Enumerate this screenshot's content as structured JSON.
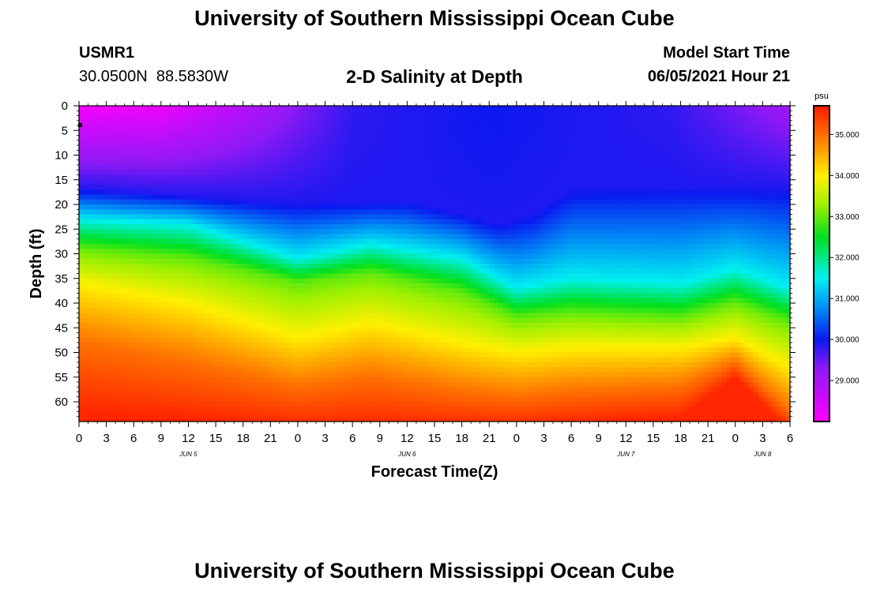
{
  "title": "University of Southern Mississippi Ocean Cube",
  "footer_title": "University of Southern Mississippi Ocean Cube",
  "station": {
    "id": "USMR1",
    "lat": "30.0500N",
    "lon": "88.5830W"
  },
  "model": {
    "label": "Model Start Time",
    "time": "06/05/2021 Hour 21"
  },
  "chart_data": {
    "type": "heatmap",
    "title": "2-D Salinity at Depth",
    "xlabel": "Forecast Time(Z)",
    "ylabel": "Depth (ft)",
    "x_hours_range": [
      0,
      78
    ],
    "ylim": [
      0,
      64
    ],
    "x_tick_labels": [
      "0",
      "3",
      "6",
      "9",
      "12",
      "15",
      "18",
      "21",
      "0",
      "3",
      "6",
      "9",
      "12",
      "15",
      "18",
      "21",
      "0",
      "3",
      "6",
      "9",
      "12",
      "15",
      "18",
      "21",
      "0",
      "3",
      "6"
    ],
    "y_ticks": [
      0,
      5,
      10,
      15,
      20,
      25,
      30,
      35,
      40,
      45,
      50,
      55,
      60
    ],
    "day_labels": [
      {
        "hour": 12,
        "label": "JUN 5"
      },
      {
        "hour": 36,
        "label": "JUN 6"
      },
      {
        "hour": 60,
        "label": "JUN 7"
      },
      {
        "hour": 75,
        "label": "JUN 8"
      }
    ],
    "colorbar": {
      "unit": "psu",
      "range": [
        28.0,
        35.7
      ],
      "tick_values": [
        29.0,
        30.0,
        31.0,
        32.0,
        33.0,
        34.0,
        35.0
      ],
      "tick_labels": [
        "29.000",
        "30.000",
        "31.000",
        "32.000",
        "33.000",
        "34.000",
        "35.000"
      ],
      "stops": [
        {
          "v": 28.0,
          "c": "#ff00ff"
        },
        {
          "v": 29.3,
          "c": "#8f19f5"
        },
        {
          "v": 30.0,
          "c": "#0a19f0"
        },
        {
          "v": 30.8,
          "c": "#0090f5"
        },
        {
          "v": 31.5,
          "c": "#00f0f0"
        },
        {
          "v": 32.5,
          "c": "#00e020"
        },
        {
          "v": 33.3,
          "c": "#a0f000"
        },
        {
          "v": 34.0,
          "c": "#fff000"
        },
        {
          "v": 34.7,
          "c": "#ff9400"
        },
        {
          "v": 35.7,
          "c": "#ff1a00"
        }
      ]
    },
    "surface_salinity": [
      {
        "hour": 0,
        "value": 28.1
      },
      {
        "hour": 9,
        "value": 28.2
      },
      {
        "hour": 20,
        "value": 29.0
      },
      {
        "hour": 30,
        "value": 29.8
      },
      {
        "hour": 45,
        "value": 30.0
      },
      {
        "hour": 65,
        "value": 29.8
      },
      {
        "hour": 78,
        "value": 29.1
      }
    ],
    "isohalines": [
      {
        "value": 29.9,
        "points": [
          [
            0,
            17
          ],
          [
            12,
            18.5
          ],
          [
            24,
            20
          ],
          [
            36,
            19.5
          ],
          [
            42,
            22
          ],
          [
            46,
            24
          ],
          [
            50,
            22
          ],
          [
            54,
            17
          ],
          [
            66,
            16.5
          ],
          [
            78,
            17
          ]
        ]
      },
      {
        "value": 31.5,
        "points": [
          [
            0,
            23
          ],
          [
            12,
            24
          ],
          [
            24,
            31
          ],
          [
            32,
            28
          ],
          [
            42,
            31
          ],
          [
            48,
            37
          ],
          [
            54,
            35
          ],
          [
            66,
            36
          ],
          [
            72,
            33
          ],
          [
            78,
            37
          ]
        ]
      },
      {
        "value": 33.0,
        "points": [
          [
            0,
            29
          ],
          [
            12,
            31
          ],
          [
            24,
            36
          ],
          [
            32,
            34
          ],
          [
            42,
            38
          ],
          [
            48,
            43
          ],
          [
            54,
            42
          ],
          [
            66,
            43
          ],
          [
            72,
            40
          ],
          [
            78,
            44
          ]
        ]
      },
      {
        "value": 34.0,
        "points": [
          [
            0,
            36
          ],
          [
            12,
            40
          ],
          [
            24,
            47
          ],
          [
            32,
            44
          ],
          [
            42,
            48
          ],
          [
            48,
            50
          ],
          [
            54,
            49
          ],
          [
            66,
            49
          ],
          [
            72,
            47
          ],
          [
            78,
            53
          ]
        ]
      },
      {
        "value": 35.0,
        "points": [
          [
            0,
            48
          ],
          [
            12,
            52
          ],
          [
            24,
            57
          ],
          [
            32,
            55
          ],
          [
            42,
            58
          ],
          [
            48,
            59
          ],
          [
            54,
            58
          ],
          [
            66,
            57
          ],
          [
            72,
            52
          ],
          [
            78,
            62
          ]
        ]
      },
      {
        "value": 35.6,
        "points": [
          [
            0,
            62
          ],
          [
            24,
            65
          ],
          [
            48,
            65
          ],
          [
            66,
            63
          ],
          [
            72,
            55
          ],
          [
            78,
            66
          ]
        ]
      }
    ],
    "marker": {
      "hour": 0,
      "depth": 4
    }
  }
}
